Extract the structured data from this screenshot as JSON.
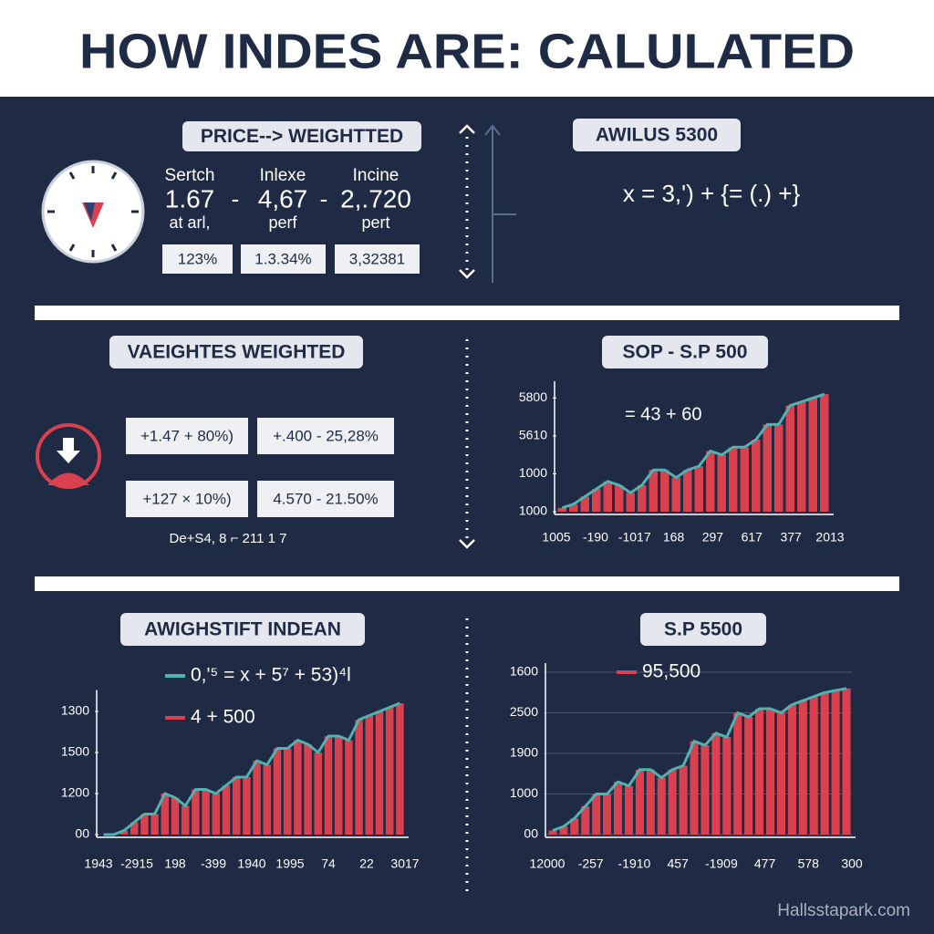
{
  "title": "HOW INDES ARE: CALULATED",
  "price_weighted": {
    "label": "PRICE--> WEIGHTTED",
    "columns": [
      {
        "top": "Sertch",
        "value": "1.67",
        "bottom": "at arl,",
        "box": "123%"
      },
      {
        "top": "Inlexe",
        "value": "4,67",
        "bottom": "perf",
        "box": "1.3.34%"
      },
      {
        "top": "Incine",
        "value": "2,.720",
        "bottom": "pert",
        "box": "3,32381"
      }
    ],
    "separators": [
      "-",
      "-"
    ]
  },
  "awilus": {
    "label": "AWILUS 5300",
    "formula": "x = 3,') + {= (.) +}"
  },
  "value_weighted": {
    "label": "VAEIGHTES WEIGHTED",
    "boxes": [
      "+1.47 + 80%)",
      "+.400 - 25,28%",
      "+127 × 10%)",
      "4.570 - 21.50%"
    ],
    "note": "De+S4, 8 ⌐ 211 1 7"
  },
  "charts": [
    {
      "label": "SOP - S.P 500",
      "annotation": "= 43 + 60",
      "ylim": [
        0,
        3.2
      ],
      "yticks": [
        {
          "value": 0,
          "label": "1000"
        },
        {
          "value": 1,
          "label": "1000"
        },
        {
          "value": 2,
          "label": "5610"
        },
        {
          "value": 3,
          "label": "5800"
        }
      ],
      "grid": false,
      "bar_color": "#d9414f",
      "line_color": "#4fb3b0",
      "values": [
        0.1,
        0.2,
        0.4,
        0.6,
        0.8,
        0.7,
        0.5,
        0.7,
        1.1,
        1.1,
        0.9,
        1.1,
        1.2,
        1.6,
        1.5,
        1.7,
        1.7,
        1.9,
        2.3,
        2.3,
        2.8,
        2.9,
        3.0,
        3.1
      ],
      "x_labels": [
        "1005",
        "-190",
        "-1017",
        "168",
        "297",
        "617",
        "377",
        "2013"
      ]
    },
    {
      "label": "AWIGHSTIFT INDEAN",
      "legend": [
        {
          "text": "0,'⁵ = x + 5⁷ + 53)⁴l",
          "color": "#4fb3b0"
        },
        {
          "text": "4 + 500",
          "color": "#d9414f"
        }
      ],
      "ylim": [
        0,
        3.3
      ],
      "yticks": [
        {
          "value": 0,
          "label": "00"
        },
        {
          "value": 1,
          "label": "1200"
        },
        {
          "value": 2,
          "label": "1500"
        },
        {
          "value": 3,
          "label": "1300"
        }
      ],
      "grid": false,
      "bar_color": "#d9414f",
      "line_color": "#4fb3b0",
      "values": [
        0,
        0,
        0.1,
        0.3,
        0.5,
        0.5,
        1.0,
        0.9,
        0.7,
        1.1,
        1.1,
        1.0,
        1.2,
        1.4,
        1.4,
        1.8,
        1.7,
        2.1,
        2.1,
        2.3,
        2.2,
        2.0,
        2.4,
        2.4,
        2.3,
        2.8,
        2.9,
        3.0,
        3.1,
        3.2
      ],
      "x_labels": [
        "1943",
        "-2915",
        "198",
        "-399",
        "1940",
        "1995",
        "74",
        "22",
        "3017"
      ]
    },
    {
      "label": "S.P 5500",
      "legend": [
        {
          "text": "95,500",
          "color": "#d9414f"
        }
      ],
      "ylim": [
        0,
        4
      ],
      "yticks": [
        {
          "value": 0,
          "label": "00"
        },
        {
          "value": 1,
          "label": "1000"
        },
        {
          "value": 2,
          "label": "1900"
        },
        {
          "value": 3,
          "label": "2500"
        },
        {
          "value": 4,
          "label": "1600"
        }
      ],
      "grid": true,
      "bar_color": "#d9414f",
      "line_color": "#4fb3b0",
      "values": [
        0.1,
        0.2,
        0.4,
        0.7,
        1.0,
        1.0,
        1.3,
        1.2,
        1.6,
        1.6,
        1.4,
        1.6,
        1.7,
        2.3,
        2.2,
        2.5,
        2.4,
        3.0,
        2.9,
        3.1,
        3.1,
        3.0,
        3.2,
        3.3,
        3.4,
        3.5,
        3.55,
        3.6
      ],
      "x_labels": [
        "12000",
        "-257",
        "-1910",
        "457",
        "-1909",
        "477",
        "578",
        "300"
      ]
    }
  ],
  "watermark": "Hallsstapark.com"
}
